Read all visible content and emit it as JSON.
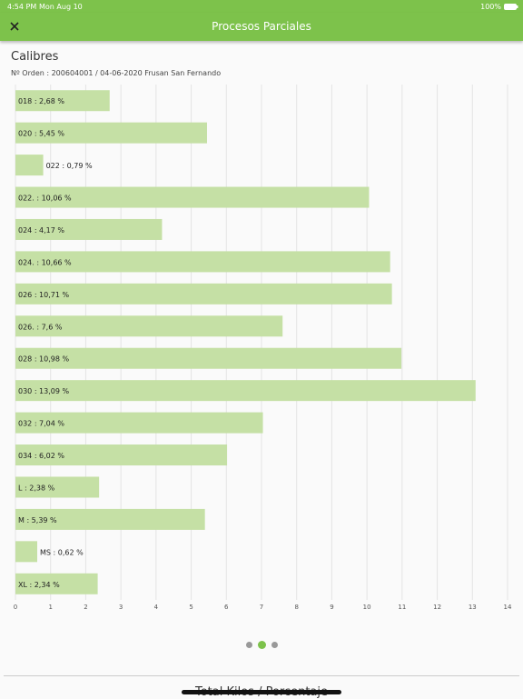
{
  "status_bar": {
    "time": "4:54 PM",
    "date": "Mon Aug 10",
    "battery": "100%"
  },
  "header": {
    "title": "Procesos Parciales"
  },
  "section": {
    "title": "Calibres",
    "subtitle": "Nº Orden : 200604001 / 04-06-2020 Frusan San Fernando"
  },
  "chart_data": {
    "type": "bar",
    "orientation": "horizontal",
    "values": [
      2.68,
      5.45,
      0.79,
      10.06,
      4.17,
      10.66,
      10.71,
      7.6,
      10.98,
      13.09,
      7.04,
      6.02,
      2.38,
      5.39,
      0.62,
      2.34
    ],
    "value_labels": [
      "018 : 2,68 %",
      "020 : 5,45 %",
      "022 : 0,79 %",
      "022. : 10,06 %",
      "024 : 4,17 %",
      "024. : 10,66 %",
      "026 : 10,71 %",
      "026. : 7,6 %",
      "028 : 10,98 %",
      "030 : 13,09 %",
      "032 : 7,04 %",
      "034 : 6,02 %",
      "L : 2,38 %",
      "M : 5,39 %",
      "MS : 0,62 %",
      "XL : 2,34 %"
    ],
    "color": "#c5e0a5",
    "xlim": [
      0,
      14
    ],
    "xticks": [
      0,
      1,
      2,
      3,
      4,
      5,
      6,
      7,
      8,
      9,
      10,
      11,
      12,
      13,
      14
    ],
    "grid": true
  },
  "footer": {
    "title": "Total Kilos / Porcentaje"
  }
}
